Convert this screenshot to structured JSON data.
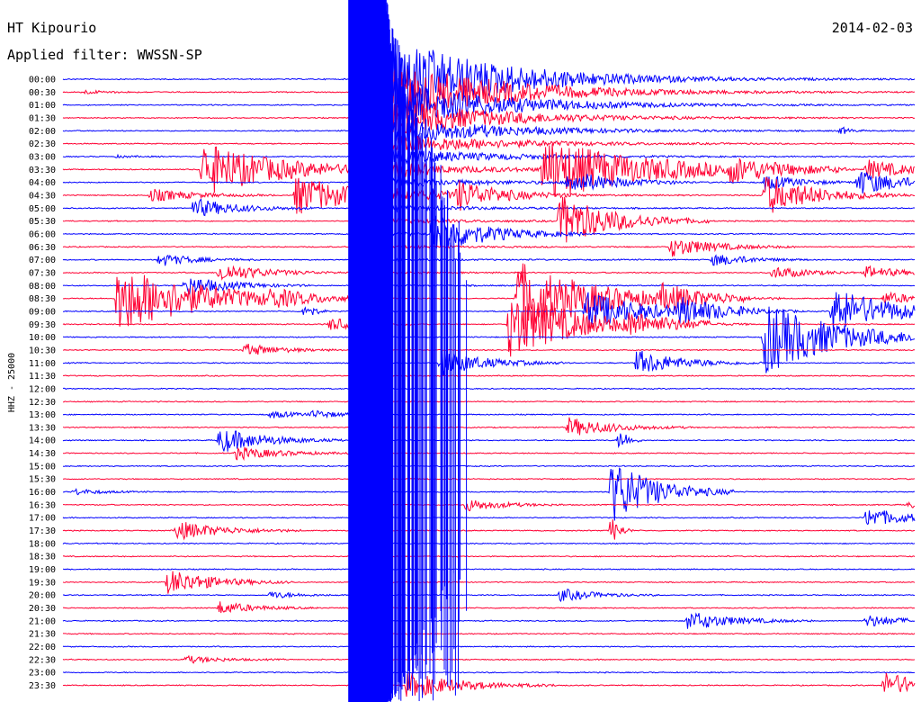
{
  "header": {
    "station": "HT Kipourio",
    "date": "2014-02-03",
    "filter": "Applied filter: WWSSN-SP"
  },
  "chart_data": {
    "type": "line",
    "title": "HT Kipourio",
    "subtitle": "Applied filter: WWSSN-SP",
    "ylabel": "HHZ - 25000",
    "xlabel": "",
    "series_colors": [
      "#0000ff",
      "#ff0033"
    ],
    "rows": [
      "00:00",
      "00:30",
      "01:00",
      "01:30",
      "02:00",
      "02:30",
      "03:00",
      "03:30",
      "04:00",
      "04:30",
      "05:00",
      "05:30",
      "06:00",
      "06:30",
      "07:00",
      "07:30",
      "08:00",
      "08:30",
      "09:00",
      "09:30",
      "10:00",
      "10:30",
      "11:00",
      "11:30",
      "12:00",
      "12:30",
      "13:00",
      "13:30",
      "14:00",
      "14:30",
      "15:00",
      "15:30",
      "16:00",
      "16:30",
      "17:00",
      "17:30",
      "18:00",
      "18:30",
      "19:00",
      "19:30",
      "20:00",
      "20:30",
      "21:00",
      "21:30",
      "22:00",
      "22:30",
      "23:00",
      "23:30"
    ],
    "x_range_minutes": [
      0,
      30
    ],
    "events": [
      {
        "row": 1,
        "x": 0.02,
        "amp": 0.3,
        "dur": 0.03
      },
      {
        "row": 4,
        "x": 0.91,
        "amp": 0.8,
        "dur": 0.01
      },
      {
        "row": 6,
        "x": 0.06,
        "amp": 0.2,
        "dur": 0.02
      },
      {
        "row": 7,
        "x": 0.16,
        "amp": 4.0,
        "dur": 0.09
      },
      {
        "row": 7,
        "x": 0.56,
        "amp": 4.5,
        "dur": 0.12
      },
      {
        "row": 7,
        "x": 0.78,
        "amp": 1.5,
        "dur": 0.05
      },
      {
        "row": 7,
        "x": 0.94,
        "amp": 1.5,
        "dur": 0.05
      },
      {
        "row": 8,
        "x": 0.59,
        "amp": 1.8,
        "dur": 0.05
      },
      {
        "row": 8,
        "x": 0.82,
        "amp": 1.2,
        "dur": 0.04
      },
      {
        "row": 8,
        "x": 0.93,
        "amp": 2.0,
        "dur": 0.05
      },
      {
        "row": 9,
        "x": 0.1,
        "amp": 1.0,
        "dur": 0.05
      },
      {
        "row": 9,
        "x": 0.27,
        "amp": 3.0,
        "dur": 0.07
      },
      {
        "row": 9,
        "x": 0.46,
        "amp": 2.0,
        "dur": 0.05
      },
      {
        "row": 9,
        "x": 0.82,
        "amp": 3.0,
        "dur": 0.06
      },
      {
        "row": 10,
        "x": 0.15,
        "amp": 1.5,
        "dur": 0.05
      },
      {
        "row": 11,
        "x": 0.58,
        "amp": 4.0,
        "dur": 0.06
      },
      {
        "row": 12,
        "x": 0.43,
        "amp": 3.0,
        "dur": 0.06
      },
      {
        "row": 13,
        "x": 0.71,
        "amp": 1.5,
        "dur": 0.05
      },
      {
        "row": 14,
        "x": 0.11,
        "amp": 1.0,
        "dur": 0.04
      },
      {
        "row": 14,
        "x": 0.76,
        "amp": 1.0,
        "dur": 0.04
      },
      {
        "row": 15,
        "x": 0.18,
        "amp": 1.5,
        "dur": 0.05
      },
      {
        "row": 15,
        "x": 0.83,
        "amp": 1.0,
        "dur": 0.04
      },
      {
        "row": 15,
        "x": 0.94,
        "amp": 1.0,
        "dur": 0.04
      },
      {
        "row": 16,
        "x": 0.14,
        "amp": 1.5,
        "dur": 0.05
      },
      {
        "row": 17,
        "x": 0.06,
        "amp": 5.0,
        "dur": 0.1
      },
      {
        "row": 17,
        "x": 0.24,
        "amp": 1.0,
        "dur": 0.03
      },
      {
        "row": 17,
        "x": 0.53,
        "amp": 5.5,
        "dur": 0.09
      },
      {
        "row": 17,
        "x": 0.7,
        "amp": 1.5,
        "dur": 0.05
      },
      {
        "row": 17,
        "x": 0.96,
        "amp": 1.0,
        "dur": 0.04
      },
      {
        "row": 18,
        "x": 0.61,
        "amp": 3.0,
        "dur": 0.07
      },
      {
        "row": 18,
        "x": 0.72,
        "amp": 1.8,
        "dur": 0.05
      },
      {
        "row": 18,
        "x": 0.9,
        "amp": 3.5,
        "dur": 0.07
      },
      {
        "row": 18,
        "x": 0.28,
        "amp": 2.0,
        "dur": 0.01
      },
      {
        "row": 19,
        "x": 0.52,
        "amp": 5.0,
        "dur": 0.08
      },
      {
        "row": 19,
        "x": 0.31,
        "amp": 1.0,
        "dur": 0.04
      },
      {
        "row": 19,
        "x": 0.66,
        "amp": 1.2,
        "dur": 0.05
      },
      {
        "row": 20,
        "x": 0.82,
        "amp": 5.5,
        "dur": 0.08
      },
      {
        "row": 21,
        "x": 0.21,
        "amp": 1.0,
        "dur": 0.04
      },
      {
        "row": 22,
        "x": 0.44,
        "amp": 2.0,
        "dur": 0.05
      },
      {
        "row": 22,
        "x": 0.67,
        "amp": 2.0,
        "dur": 0.05
      },
      {
        "row": 26,
        "x": 0.24,
        "amp": 0.6,
        "dur": 0.03
      },
      {
        "row": 26,
        "x": 0.29,
        "amp": 0.6,
        "dur": 0.03
      },
      {
        "row": 27,
        "x": 0.59,
        "amp": 1.5,
        "dur": 0.05
      },
      {
        "row": 28,
        "x": 0.18,
        "amp": 2.0,
        "dur": 0.05
      },
      {
        "row": 28,
        "x": 0.65,
        "amp": 2.5,
        "dur": 0.01
      },
      {
        "row": 29,
        "x": 0.2,
        "amp": 1.0,
        "dur": 0.05
      },
      {
        "row": 32,
        "x": 0.64,
        "amp": 5.0,
        "dur": 0.05
      },
      {
        "row": 32,
        "x": 0.01,
        "amp": 0.5,
        "dur": 0.03
      },
      {
        "row": 33,
        "x": 0.47,
        "amp": 1.0,
        "dur": 0.04
      },
      {
        "row": 33,
        "x": 0.99,
        "amp": 0.6,
        "dur": 0.02
      },
      {
        "row": 34,
        "x": 0.94,
        "amp": 1.5,
        "dur": 0.05
      },
      {
        "row": 35,
        "x": 0.13,
        "amp": 1.5,
        "dur": 0.05
      },
      {
        "row": 35,
        "x": 0.64,
        "amp": 3.0,
        "dur": 0.01
      },
      {
        "row": 39,
        "x": 0.12,
        "amp": 2.0,
        "dur": 0.05
      },
      {
        "row": 40,
        "x": 0.24,
        "amp": 0.6,
        "dur": 0.03
      },
      {
        "row": 40,
        "x": 0.58,
        "amp": 1.0,
        "dur": 0.04
      },
      {
        "row": 41,
        "x": 0.18,
        "amp": 1.0,
        "dur": 0.04
      },
      {
        "row": 42,
        "x": 0.73,
        "amp": 1.5,
        "dur": 0.05
      },
      {
        "row": 42,
        "x": 0.94,
        "amp": 1.0,
        "dur": 0.04
      },
      {
        "row": 45,
        "x": 0.14,
        "amp": 0.6,
        "dur": 0.04
      },
      {
        "row": 47,
        "x": 0.4,
        "amp": 2.0,
        "dur": 0.06
      },
      {
        "row": 47,
        "x": 0.96,
        "amp": 2.0,
        "dur": 0.05
      }
    ],
    "saturated_band": {
      "x_start": 0.335,
      "x_end": 0.38,
      "row_start": 0,
      "row_end": 47
    },
    "main_quake": {
      "row": 0,
      "x": 0.38,
      "amp_rows": 10,
      "decay_rows": 16
    }
  }
}
